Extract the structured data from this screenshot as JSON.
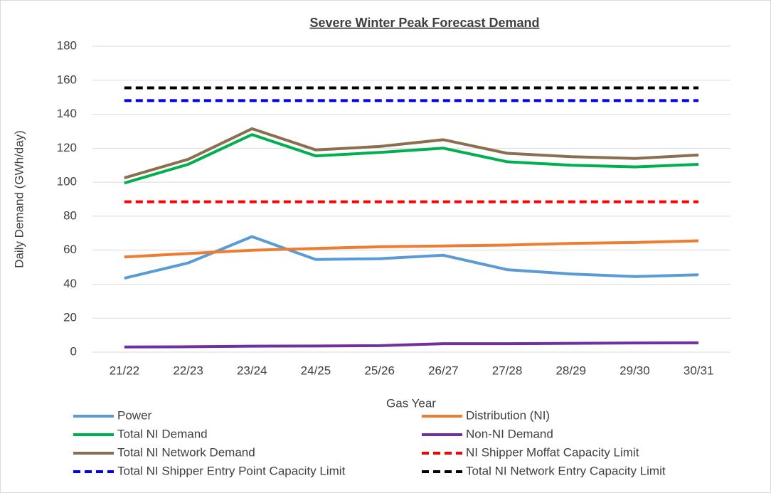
{
  "chart_data": {
    "type": "line",
    "title": "Severe Winter Peak Forecast Demand",
    "x_label": "Gas Year",
    "y_label": "Daily Demand (GWh/day)",
    "categories": [
      "21/22",
      "22/23",
      "23/24",
      "24/25",
      "25/26",
      "26/27",
      "27/28",
      "28/29",
      "29/30",
      "30/31"
    ],
    "ylim": [
      0,
      180
    ],
    "yticks": [
      0,
      20,
      40,
      60,
      80,
      100,
      120,
      140,
      160,
      180
    ],
    "grid": true,
    "series": [
      {
        "name": "Power",
        "color": "#5b9bd5",
        "line_style": "solid",
        "values": [
          43.5,
          52.5,
          68,
          54.5,
          55,
          57,
          48.5,
          46,
          44.5,
          45.5
        ]
      },
      {
        "name": "Distribution (NI)",
        "color": "#ed7d31",
        "line_style": "solid",
        "values": [
          56,
          58,
          60,
          61,
          62,
          62.5,
          63,
          64,
          64.5,
          65.5
        ]
      },
      {
        "name": "Total NI Demand",
        "color": "#00b050",
        "line_style": "solid",
        "values": [
          99.5,
          110.5,
          128,
          115.5,
          117.5,
          120,
          112,
          110,
          109,
          110.5
        ]
      },
      {
        "name": "Non-NI Demand",
        "color": "#7030a0",
        "line_style": "solid",
        "values": [
          3,
          3.2,
          3.5,
          3.6,
          3.8,
          5,
          5,
          5.2,
          5.4,
          5.5
        ]
      },
      {
        "name": "Total NI Network Demand",
        "color": "#8b6e4e",
        "line_style": "solid",
        "values": [
          102.5,
          113.5,
          131.5,
          119,
          121,
          125,
          117,
          115,
          114,
          116
        ]
      },
      {
        "name": "NI Shipper Moffat Capacity Limit",
        "color": "#ff0000",
        "line_style": "dashed",
        "values": [
          88.5,
          88.5,
          88.5,
          88.5,
          88.5,
          88.5,
          88.5,
          88.5,
          88.5,
          88.5
        ]
      },
      {
        "name": "Total NI Shipper Entry Point Capacity Limit",
        "color": "#0000ff",
        "line_style": "dashed",
        "values": [
          148,
          148,
          148,
          148,
          148,
          148,
          148,
          148,
          148,
          148
        ]
      },
      {
        "name": "Total NI Network Entry Capacity Limit",
        "color": "#000000",
        "line_style": "dashed",
        "values": [
          155.5,
          155.5,
          155.5,
          155.5,
          155.5,
          155.5,
          155.5,
          155.5,
          155.5,
          155.5
        ]
      }
    ]
  }
}
